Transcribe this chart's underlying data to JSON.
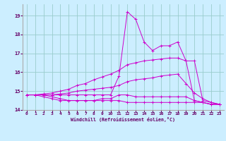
{
  "bg_color": "#cceeff",
  "grid_color": "#99cccc",
  "line_color": "#cc00cc",
  "xlim": [
    -0.5,
    23.5
  ],
  "ylim": [
    14.0,
    19.6
  ],
  "yticks": [
    14,
    15,
    16,
    17,
    18,
    19
  ],
  "xticks": [
    0,
    1,
    2,
    3,
    4,
    5,
    6,
    7,
    8,
    9,
    10,
    11,
    12,
    13,
    14,
    15,
    16,
    17,
    18,
    19,
    20,
    21,
    22,
    23
  ],
  "xlabel": "Windchill (Refroidissement éolien,°C)",
  "lines": [
    {
      "x": [
        0,
        1,
        2,
        3,
        4,
        5,
        6,
        7,
        8,
        9,
        10,
        11,
        12,
        13,
        14,
        15,
        16,
        17,
        18,
        19,
        20,
        21,
        22,
        23
      ],
      "y": [
        14.8,
        14.8,
        14.8,
        14.7,
        14.6,
        14.5,
        14.5,
        14.5,
        14.5,
        14.5,
        14.5,
        14.5,
        14.4,
        14.4,
        14.4,
        14.4,
        14.4,
        14.4,
        14.4,
        14.4,
        14.4,
        14.4,
        14.3,
        14.3
      ]
    },
    {
      "x": [
        0,
        1,
        2,
        3,
        4,
        5,
        6,
        7,
        8,
        9,
        10,
        11,
        12,
        13,
        14,
        15,
        16,
        17,
        18,
        19,
        20,
        21,
        22,
        23
      ],
      "y": [
        14.8,
        14.8,
        14.7,
        14.6,
        14.5,
        14.5,
        14.5,
        14.5,
        14.5,
        14.6,
        14.6,
        14.8,
        14.8,
        14.7,
        14.7,
        14.7,
        14.7,
        14.7,
        14.7,
        14.7,
        14.5,
        14.4,
        14.3,
        14.3
      ]
    },
    {
      "x": [
        0,
        1,
        2,
        3,
        4,
        5,
        6,
        7,
        8,
        9,
        10,
        11,
        12,
        13,
        14,
        15,
        16,
        17,
        18,
        19,
        20,
        21,
        22,
        23
      ],
      "y": [
        14.8,
        14.8,
        14.8,
        14.8,
        14.85,
        14.9,
        15.0,
        15.05,
        15.1,
        15.15,
        15.2,
        15.3,
        15.5,
        15.6,
        15.65,
        15.7,
        15.8,
        15.85,
        15.9,
        15.4,
        14.9,
        14.6,
        14.4,
        14.3
      ]
    },
    {
      "x": [
        0,
        1,
        2,
        3,
        4,
        5,
        6,
        7,
        8,
        9,
        10,
        11,
        12,
        13,
        14,
        15,
        16,
        17,
        18,
        19,
        20,
        21,
        22,
        23
      ],
      "y": [
        14.8,
        14.8,
        14.85,
        14.9,
        15.0,
        15.1,
        15.3,
        15.4,
        15.6,
        15.75,
        15.9,
        16.1,
        16.4,
        16.5,
        16.6,
        16.65,
        16.7,
        16.75,
        16.75,
        16.6,
        16.6,
        14.5,
        14.4,
        14.3
      ]
    },
    {
      "x": [
        0,
        1,
        2,
        3,
        4,
        5,
        6,
        7,
        8,
        9,
        10,
        11,
        12,
        13,
        14,
        15,
        16,
        17,
        18,
        19,
        20,
        21,
        22,
        23
      ],
      "y": [
        14.8,
        14.8,
        14.8,
        14.8,
        14.8,
        14.8,
        14.8,
        14.8,
        14.8,
        14.8,
        14.8,
        15.8,
        19.2,
        18.8,
        17.6,
        17.15,
        17.4,
        17.4,
        17.6,
        16.6,
        14.5,
        14.4,
        14.3,
        14.3
      ]
    }
  ]
}
